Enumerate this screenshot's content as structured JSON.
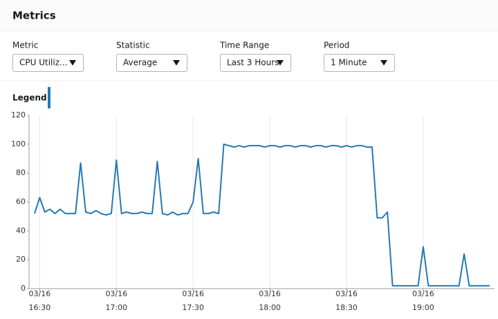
{
  "panel": {
    "title": "Metrics",
    "controls": [
      {
        "label": "Metric",
        "value": "CPU Utiliz..."
      },
      {
        "label": "Statistic",
        "value": "Average"
      },
      {
        "label": "Time Range",
        "value": "Last 3 Hours"
      },
      {
        "label": "Period",
        "value": "1 Minute"
      }
    ],
    "legend_label": "Legend:"
  },
  "chart_data": {
    "type": "line",
    "color": "#2478b4",
    "grid": "x",
    "x": [
      "03/16 16:28",
      "03/16 16:30",
      "03/16 16:32",
      "03/16 16:34",
      "03/16 16:36",
      "03/16 16:38",
      "03/16 16:40",
      "03/16 16:42",
      "03/16 16:44",
      "03/16 16:46",
      "03/16 16:48",
      "03/16 16:50",
      "03/16 16:52",
      "03/16 16:54",
      "03/16 16:56",
      "03/16 16:58",
      "03/16 17:00",
      "03/16 17:02",
      "03/16 17:04",
      "03/16 17:06",
      "03/16 17:08",
      "03/16 17:10",
      "03/16 17:12",
      "03/16 17:14",
      "03/16 17:16",
      "03/16 17:18",
      "03/16 17:20",
      "03/16 17:22",
      "03/16 17:24",
      "03/16 17:26",
      "03/16 17:28",
      "03/16 17:30",
      "03/16 17:32",
      "03/16 17:34",
      "03/16 17:36",
      "03/16 17:38",
      "03/16 17:40",
      "03/16 17:42",
      "03/16 17:44",
      "03/16 17:46",
      "03/16 17:48",
      "03/16 17:50",
      "03/16 17:52",
      "03/16 17:54",
      "03/16 17:56",
      "03/16 17:58",
      "03/16 18:00",
      "03/16 18:02",
      "03/16 18:04",
      "03/16 18:06",
      "03/16 18:08",
      "03/16 18:10",
      "03/16 18:12",
      "03/16 18:14",
      "03/16 18:16",
      "03/16 18:18",
      "03/16 18:20",
      "03/16 18:22",
      "03/16 18:24",
      "03/16 18:26",
      "03/16 18:28",
      "03/16 18:30",
      "03/16 18:32",
      "03/16 18:34",
      "03/16 18:36",
      "03/16 18:38",
      "03/16 18:40",
      "03/16 18:42",
      "03/16 18:44",
      "03/16 18:46",
      "03/16 18:48",
      "03/16 18:50",
      "03/16 18:52",
      "03/16 18:54",
      "03/16 18:56",
      "03/16 18:58",
      "03/16 19:00",
      "03/16 19:02",
      "03/16 19:04",
      "03/16 19:06",
      "03/16 19:08",
      "03/16 19:10",
      "03/16 19:12",
      "03/16 19:14",
      "03/16 19:16",
      "03/16 19:18",
      "03/16 19:20",
      "03/16 19:22",
      "03/16 19:24",
      "03/16 19:26"
    ],
    "values": [
      52,
      63,
      53,
      55,
      52,
      55,
      52,
      52,
      52,
      87,
      53,
      52,
      54,
      52,
      51,
      52,
      89,
      52,
      53,
      52,
      52,
      53,
      52,
      52,
      88,
      52,
      51,
      53,
      51,
      52,
      52,
      60,
      90,
      52,
      52,
      53,
      52,
      100,
      99,
      98,
      99,
      98,
      99,
      99,
      99,
      98,
      99,
      99,
      98,
      99,
      99,
      98,
      99,
      99,
      98,
      99,
      99,
      98,
      99,
      99,
      98,
      99,
      98,
      99,
      99,
      98,
      98,
      49,
      49,
      53,
      2,
      2,
      2,
      2,
      2,
      2,
      29,
      2,
      2,
      2,
      2,
      2,
      2,
      2,
      24,
      2,
      2,
      2,
      2,
      2
    ],
    "xlim": [
      "03/16 16:28",
      "03/16 19:26"
    ],
    "xticks": [
      {
        "value": "03/16 16:30",
        "label": "03/16 16:30"
      },
      {
        "value": "03/16 17:00",
        "label": "03/16 17:00"
      },
      {
        "value": "03/16 17:30",
        "label": "03/16 17:30"
      },
      {
        "value": "03/16 18:00",
        "label": "03/16 18:00"
      },
      {
        "value": "03/16 18:30",
        "label": "03/16 18:30"
      },
      {
        "value": "03/16 19:00",
        "label": "03/16 19:00"
      }
    ],
    "ylim": [
      0,
      120
    ],
    "yticks": [
      0,
      20,
      40,
      60,
      80,
      100,
      120
    ]
  }
}
